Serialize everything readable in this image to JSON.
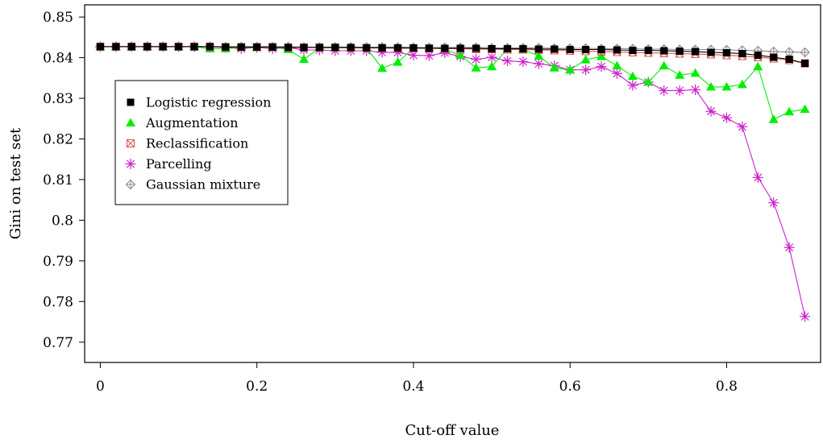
{
  "chart_data": {
    "type": "line",
    "title": "",
    "xlabel": "Cut-off value",
    "ylabel": "Gini on test set",
    "xlim": [
      -0.02,
      0.92
    ],
    "ylim": [
      0.765,
      0.853
    ],
    "xticks": [
      0,
      0.2,
      0.4,
      0.6,
      0.8
    ],
    "xtick_labels": [
      "0",
      "0.2",
      "0.4",
      "0.6",
      "0.8"
    ],
    "yticks": [
      0.77,
      0.78,
      0.79,
      0.8,
      0.81,
      0.82,
      0.83,
      0.84,
      0.85
    ],
    "ytick_labels": [
      "0.77",
      "0.78",
      "0.79",
      "0.8",
      "0.81",
      "0.82",
      "0.83",
      "0.84",
      "0.85"
    ],
    "grid": false,
    "legend_position": "left",
    "x": [
      0,
      0.02,
      0.04,
      0.06,
      0.08,
      0.1,
      0.12,
      0.14,
      0.16,
      0.18,
      0.2,
      0.22,
      0.24,
      0.26,
      0.28,
      0.3,
      0.32,
      0.34,
      0.36,
      0.38,
      0.4,
      0.42,
      0.44,
      0.46,
      0.48,
      0.5,
      0.52,
      0.54,
      0.56,
      0.58,
      0.6,
      0.62,
      0.64,
      0.66,
      0.68,
      0.7,
      0.72,
      0.74,
      0.76,
      0.78,
      0.8,
      0.82,
      0.84,
      0.86,
      0.88,
      0.9
    ],
    "series": [
      {
        "name": "Logistic regression",
        "marker": "square",
        "color": "#000000",
        "values": [
          0.8427,
          0.8427,
          0.8427,
          0.8427,
          0.8427,
          0.8427,
          0.8427,
          0.8427,
          0.8426,
          0.8426,
          0.8426,
          0.8426,
          0.8425,
          0.8425,
          0.8425,
          0.8425,
          0.8425,
          0.8424,
          0.8424,
          0.8424,
          0.8424,
          0.8423,
          0.8423,
          0.8423,
          0.8423,
          0.8422,
          0.8422,
          0.8422,
          0.8421,
          0.8421,
          0.842,
          0.842,
          0.842,
          0.8419,
          0.8418,
          0.8418,
          0.8417,
          0.8416,
          0.8415,
          0.8413,
          0.8412,
          0.841,
          0.8406,
          0.8401,
          0.8396,
          0.8386
        ]
      },
      {
        "name": "Augmentation",
        "marker": "triangle",
        "color": "#00ee00",
        "values": [
          0.8427,
          0.8427,
          0.8427,
          0.8427,
          0.8427,
          0.8427,
          0.8427,
          0.8422,
          0.8422,
          0.8425,
          0.8425,
          0.8426,
          0.842,
          0.8396,
          0.8424,
          0.8424,
          0.8425,
          0.8424,
          0.8374,
          0.8389,
          0.8423,
          0.8425,
          0.8421,
          0.8406,
          0.8375,
          0.8378,
          0.8422,
          0.842,
          0.8404,
          0.8375,
          0.837,
          0.8395,
          0.8403,
          0.838,
          0.8354,
          0.834,
          0.838,
          0.8357,
          0.8362,
          0.8328,
          0.8328,
          0.8334,
          0.8378,
          0.8248,
          0.8267,
          0.8273
        ]
      },
      {
        "name": "Reclassification",
        "marker": "boxx",
        "color": "#e05050",
        "values": [
          0.8427,
          0.8427,
          0.8427,
          0.8427,
          0.8427,
          0.8427,
          0.8427,
          0.8427,
          0.8426,
          0.8426,
          0.8426,
          0.8426,
          0.8425,
          0.8425,
          0.8425,
          0.8425,
          0.8424,
          0.8424,
          0.8424,
          0.8423,
          0.8423,
          0.8423,
          0.8422,
          0.8422,
          0.8421,
          0.8421,
          0.842,
          0.842,
          0.8419,
          0.8418,
          0.8417,
          0.8416,
          0.8415,
          0.8414,
          0.8413,
          0.8412,
          0.8411,
          0.841,
          0.8409,
          0.8408,
          0.8406,
          0.8404,
          0.8401,
          0.8398,
          0.8394,
          0.8386
        ]
      },
      {
        "name": "Parcelling",
        "marker": "asterisk",
        "color": "#cc22cc",
        "values": [
          0.8427,
          0.8427,
          0.8427,
          0.8427,
          0.8427,
          0.8427,
          0.8427,
          0.8427,
          0.8425,
          0.8422,
          0.8425,
          0.8422,
          0.8425,
          0.8419,
          0.8419,
          0.8417,
          0.8417,
          0.8417,
          0.8413,
          0.8413,
          0.8406,
          0.8405,
          0.8412,
          0.8403,
          0.8396,
          0.8401,
          0.8392,
          0.839,
          0.8385,
          0.838,
          0.837,
          0.837,
          0.8378,
          0.8361,
          0.8332,
          0.834,
          0.8319,
          0.8319,
          0.8321,
          0.8268,
          0.8252,
          0.823,
          0.8105,
          0.8043,
          0.7933,
          0.7763
        ]
      },
      {
        "name": "Gaussian mixture",
        "marker": "diamondplus",
        "color": "#888888",
        "values": [
          0.8427,
          0.8427,
          0.8427,
          0.8427,
          0.8427,
          0.8427,
          0.8427,
          0.8427,
          0.8427,
          0.8427,
          0.8427,
          0.8427,
          0.8427,
          0.8426,
          0.8426,
          0.8426,
          0.8426,
          0.8426,
          0.8426,
          0.8426,
          0.8425,
          0.8425,
          0.8425,
          0.8425,
          0.8425,
          0.8424,
          0.8424,
          0.8424,
          0.8424,
          0.8423,
          0.8423,
          0.8423,
          0.8422,
          0.8422,
          0.8422,
          0.8421,
          0.8421,
          0.842,
          0.842,
          0.842,
          0.8419,
          0.8418,
          0.8417,
          0.8415,
          0.8414,
          0.8413
        ]
      }
    ]
  }
}
